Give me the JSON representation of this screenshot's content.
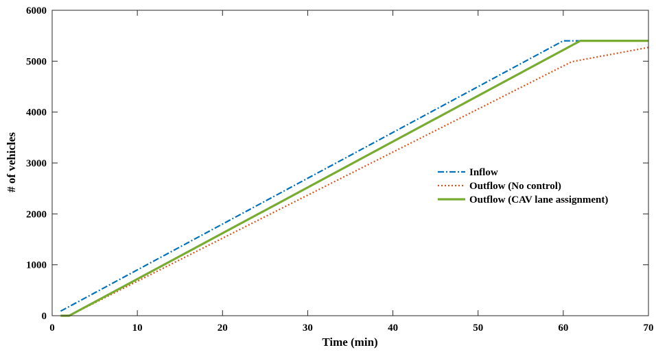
{
  "chart_data": {
    "type": "line",
    "title": "",
    "xlabel": "Time (min)",
    "ylabel": "# of vehicles",
    "xlim": [
      0,
      70
    ],
    "ylim": [
      0,
      6000
    ],
    "xticks": [
      0,
      10,
      20,
      30,
      40,
      50,
      60,
      70
    ],
    "yticks": [
      0,
      1000,
      2000,
      3000,
      4000,
      5000,
      6000
    ],
    "xtick_labels": [
      "0",
      "10",
      "20",
      "30",
      "40",
      "50",
      "60",
      "70"
    ],
    "ytick_labels": [
      "0",
      "1000",
      "2000",
      "3000",
      "4000",
      "5000",
      "6000"
    ],
    "grid": false,
    "legend_position": "center-right",
    "series": [
      {
        "name": "Inflow",
        "color": "#0072BD",
        "style": "dashdot",
        "x": [
          1,
          60,
          70
        ],
        "y": [
          90,
          5400,
          5400
        ]
      },
      {
        "name": "Outflow (No control)",
        "color": "#D95319",
        "style": "dotted",
        "x": [
          1,
          2,
          61,
          70
        ],
        "y": [
          0,
          0,
          4990,
          5270
        ]
      },
      {
        "name": "Outflow (CAV lane assignment)",
        "color": "#77AC30",
        "style": "solid",
        "x": [
          1,
          2,
          62,
          70
        ],
        "y": [
          0,
          0,
          5400,
          5400
        ]
      }
    ]
  }
}
